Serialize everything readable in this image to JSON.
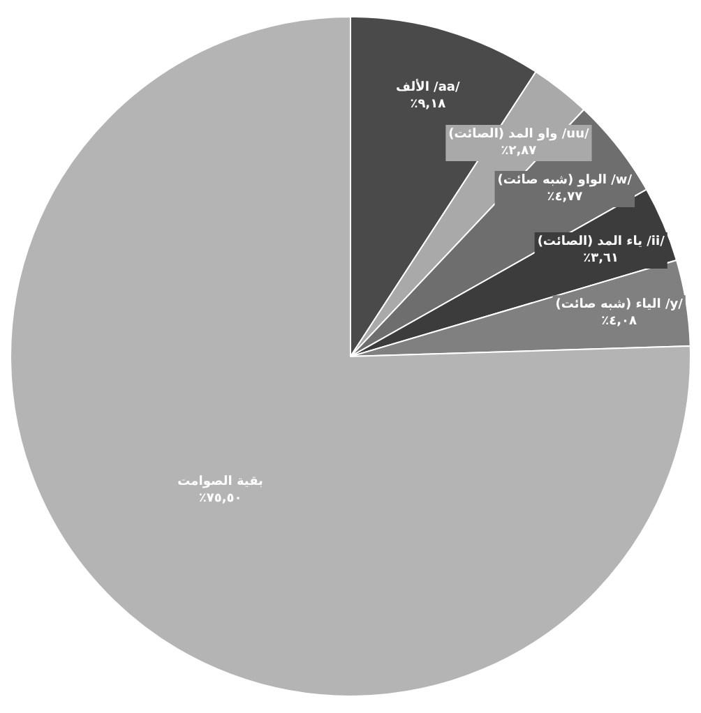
{
  "chart_data": {
    "type": "pie",
    "categories": [
      "الألف /aa/",
      "واو المد (الصائت) /uu/",
      "الواو (شبه صائت) /w/",
      "ياء المد (الصائت) /ii/",
      "الياء (شبه صائت) /y/",
      "بقية الصوامت"
    ],
    "values": [
      9.18,
      2.87,
      4.77,
      3.61,
      4.08,
      75.5
    ],
    "value_labels": [
      "٪٩,١٨",
      "٪٢,٨٧",
      "٪٤,٧٧",
      "٪٣,٦١",
      "٪٤,٠٨",
      "٪٧٥,٥٠"
    ],
    "colors": [
      "#4a4a4a",
      "#a9a9a9",
      "#6e6e6e",
      "#3c3c3c",
      "#808080",
      "#b4b4b4"
    ]
  }
}
